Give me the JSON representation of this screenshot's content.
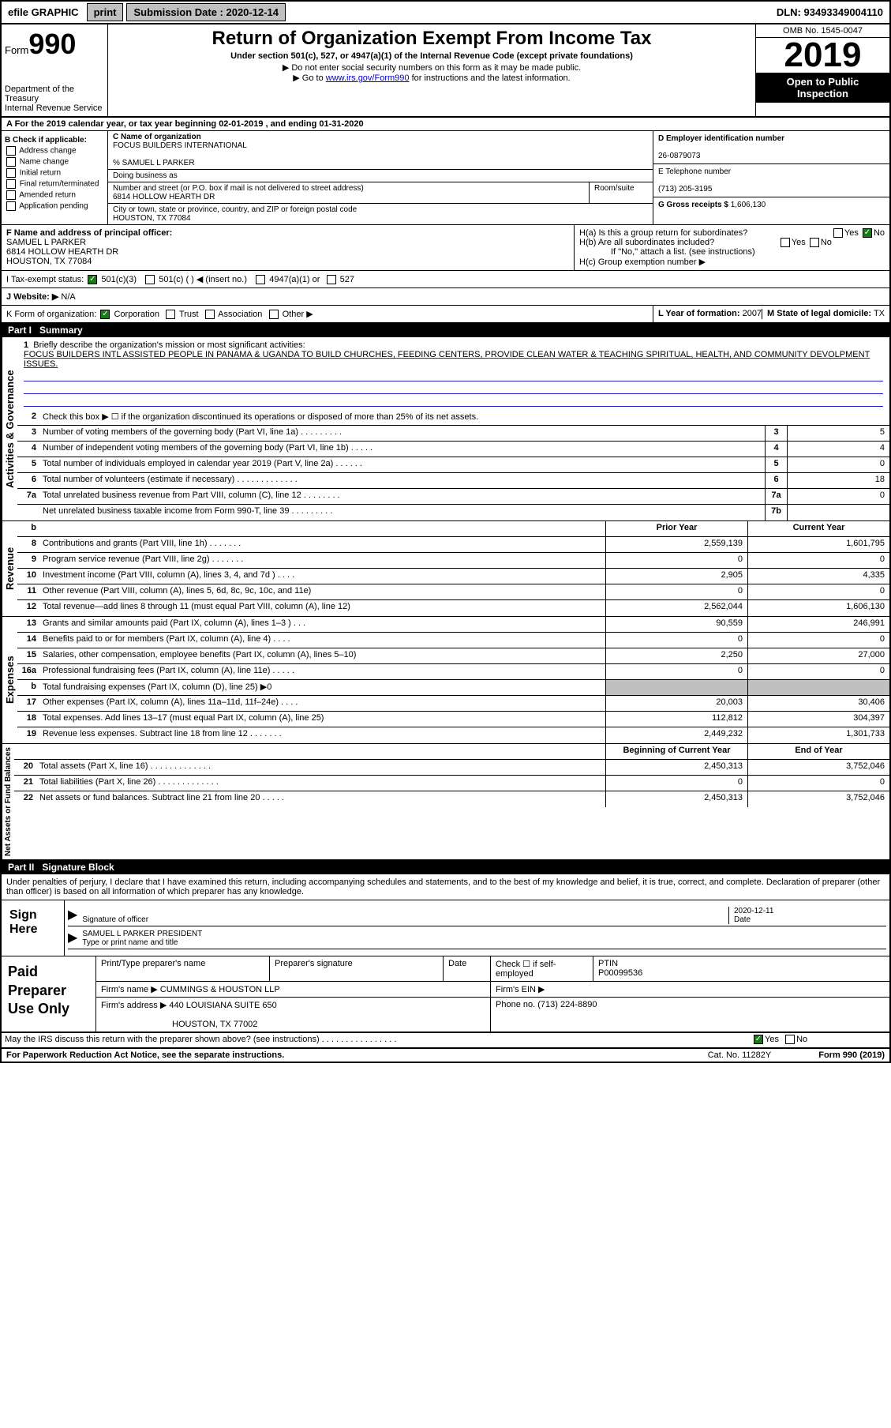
{
  "topbar": {
    "efile": "efile GRAPHIC",
    "print": "print",
    "sub_label": "Submission Date : 2020-12-14",
    "dln": "DLN: 93493349004110"
  },
  "header": {
    "form_word": "Form",
    "form_num": "990",
    "dept": "Department of the Treasury",
    "irs": "Internal Revenue Service",
    "title": "Return of Organization Exempt From Income Tax",
    "sub1": "Under section 501(c), 527, or 4947(a)(1) of the Internal Revenue Code (except private foundations)",
    "sub2": "▶ Do not enter social security numbers on this form as it may be made public.",
    "sub3_pre": "▶ Go to ",
    "sub3_link": "www.irs.gov/Form990",
    "sub3_post": " for instructions and the latest information.",
    "omb": "OMB No. 1545-0047",
    "year": "2019",
    "public1": "Open to Public",
    "public2": "Inspection"
  },
  "rowA": "A For the 2019 calendar year, or tax year beginning 02-01-2019  , and ending 01-31-2020",
  "colB": {
    "title": "B Check if applicable:",
    "items": [
      "Address change",
      "Name change",
      "Initial return",
      "Final return/terminated",
      "Amended return",
      "Application pending"
    ]
  },
  "colC": {
    "name_label": "C Name of organization",
    "name": "FOCUS BUILDERS INTERNATIONAL",
    "care_of": "% SAMUEL L PARKER",
    "dba": "Doing business as",
    "addr_label": "Number and street (or P.O. box if mail is not delivered to street address)",
    "room": "Room/suite",
    "addr": "6814 HOLLOW HEARTH DR",
    "city_label": "City or town, state or province, country, and ZIP or foreign postal code",
    "city": "HOUSTON, TX  77084"
  },
  "colD": {
    "ein_label": "D Employer identification number",
    "ein": "26-0879073",
    "tel_label": "E Telephone number",
    "tel": "(713) 205-3195",
    "gross_label": "G Gross receipts $",
    "gross": "1,606,130"
  },
  "rowF": {
    "label": "F Name and address of principal officer:",
    "name": "SAMUEL L PARKER",
    "addr1": "6814 HOLLOW HEARTH DR",
    "addr2": "HOUSTON, TX  77084"
  },
  "rowH": {
    "ha": "H(a)  Is this a group return for subordinates?",
    "hb": "H(b)  Are all subordinates included?",
    "hb_note": "If \"No,\" attach a list. (see instructions)",
    "hc": "H(c)  Group exemption number ▶"
  },
  "rowI": {
    "label": "I   Tax-exempt status:",
    "opts": [
      "501(c)(3)",
      "501(c) (  ) ◀ (insert no.)",
      "4947(a)(1) or",
      "527"
    ]
  },
  "rowJ": {
    "label": "J   Website: ▶",
    "val": "N/A"
  },
  "rowK": {
    "label": "K Form of organization:",
    "opts": [
      "Corporation",
      "Trust",
      "Association",
      "Other ▶"
    ]
  },
  "rowL": {
    "label": "L Year of formation:",
    "val": "2007"
  },
  "rowM": {
    "label": "M State of legal domicile:",
    "val": "TX"
  },
  "part1": {
    "num": "Part I",
    "title": "Summary"
  },
  "mission": {
    "num": "1",
    "label": "Briefly describe the organization's mission or most significant activities:",
    "text": "FOCUS BUILDERS INTL ASSISTED PEOPLE IN PANAMA & UGANDA TO BUILD CHURCHES, FEEDING CENTERS, PROVIDE CLEAN WATER & TEACHING SPIRITUAL, HEALTH, AND COMMUNITY DEVOLPMENT ISSUES."
  },
  "line2": "Check this box ▶ ☐ if the organization discontinued its operations or disposed of more than 25% of its net assets.",
  "gov_lines": [
    {
      "n": "3",
      "d": "Number of voting members of the governing body (Part VI, line 1a)  .  .  .  .  .  .  .  .  .",
      "box": "3",
      "v": "5"
    },
    {
      "n": "4",
      "d": "Number of independent voting members of the governing body (Part VI, line 1b)  .  .  .  .  .",
      "box": "4",
      "v": "4"
    },
    {
      "n": "5",
      "d": "Total number of individuals employed in calendar year 2019 (Part V, line 2a)  .  .  .  .  .  .",
      "box": "5",
      "v": "0"
    },
    {
      "n": "6",
      "d": "Total number of volunteers (estimate if necessary)  .  .  .  .  .  .  .  .  .  .  .  .  .",
      "box": "6",
      "v": "18"
    },
    {
      "n": "7a",
      "d": "Total unrelated business revenue from Part VIII, column (C), line 12  .  .  .  .  .  .  .  .",
      "box": "7a",
      "v": "0"
    },
    {
      "n": "",
      "d": "Net unrelated business taxable income from Form 990-T, line 39  .  .  .  .  .  .  .  .  .",
      "box": "7b",
      "v": ""
    }
  ],
  "col_headers": {
    "prior": "Prior Year",
    "current": "Current Year"
  },
  "rev_lines": [
    {
      "n": "8",
      "d": "Contributions and grants (Part VIII, line 1h)  .  .  .  .  .  .  .",
      "p": "2,559,139",
      "c": "1,601,795"
    },
    {
      "n": "9",
      "d": "Program service revenue (Part VIII, line 2g)  .  .  .  .  .  .  .",
      "p": "0",
      "c": "0"
    },
    {
      "n": "10",
      "d": "Investment income (Part VIII, column (A), lines 3, 4, and 7d )  .  .  .  .",
      "p": "2,905",
      "c": "4,335"
    },
    {
      "n": "11",
      "d": "Other revenue (Part VIII, column (A), lines 5, 6d, 8c, 9c, 10c, and 11e)",
      "p": "0",
      "c": "0"
    },
    {
      "n": "12",
      "d": "Total revenue—add lines 8 through 11 (must equal Part VIII, column (A), line 12)",
      "p": "2,562,044",
      "c": "1,606,130"
    }
  ],
  "exp_lines": [
    {
      "n": "13",
      "d": "Grants and similar amounts paid (Part IX, column (A), lines 1–3 )  .  .  .",
      "p": "90,559",
      "c": "246,991"
    },
    {
      "n": "14",
      "d": "Benefits paid to or for members (Part IX, column (A), line 4)  .  .  .  .",
      "p": "0",
      "c": "0"
    },
    {
      "n": "15",
      "d": "Salaries, other compensation, employee benefits (Part IX, column (A), lines 5–10)",
      "p": "2,250",
      "c": "27,000"
    },
    {
      "n": "16a",
      "d": "Professional fundraising fees (Part IX, column (A), line 11e)  .  .  .  .  .",
      "p": "0",
      "c": "0"
    },
    {
      "n": "b",
      "d": "Total fundraising expenses (Part IX, column (D), line 25) ▶0",
      "p": "",
      "c": "",
      "grey": true
    },
    {
      "n": "17",
      "d": "Other expenses (Part IX, column (A), lines 11a–11d, 11f–24e)  .  .  .  .",
      "p": "20,003",
      "c": "30,406"
    },
    {
      "n": "18",
      "d": "Total expenses. Add lines 13–17 (must equal Part IX, column (A), line 25)",
      "p": "112,812",
      "c": "304,397"
    },
    {
      "n": "19",
      "d": "Revenue less expenses. Subtract line 18 from line 12  .  .  .  .  .  .  .",
      "p": "2,449,232",
      "c": "1,301,733"
    }
  ],
  "net_headers": {
    "beg": "Beginning of Current Year",
    "end": "End of Year"
  },
  "net_lines": [
    {
      "n": "20",
      "d": "Total assets (Part X, line 16)  .  .  .  .  .  .  .  .  .  .  .  .  .",
      "p": "2,450,313",
      "c": "3,752,046"
    },
    {
      "n": "21",
      "d": "Total liabilities (Part X, line 26)  .  .  .  .  .  .  .  .  .  .  .  .  .",
      "p": "0",
      "c": "0"
    },
    {
      "n": "22",
      "d": "Net assets or fund balances. Subtract line 21 from line 20  .  .  .  .  .",
      "p": "2,450,313",
      "c": "3,752,046"
    }
  ],
  "part2": {
    "num": "Part II",
    "title": "Signature Block"
  },
  "penalty": "Under penalties of perjury, I declare that I have examined this return, including accompanying schedules and statements, and to the best of my knowledge and belief, it is true, correct, and complete. Declaration of preparer (other than officer) is based on all information of which preparer has any knowledge.",
  "sign": {
    "here": "Sign Here",
    "sig_officer": "Signature of officer",
    "date": "2020-12-11",
    "date_label": "Date",
    "name": "SAMUEL L PARKER  PRESIDENT",
    "type_label": "Type or print name and title"
  },
  "prep": {
    "title": "Paid Preparer Use Only",
    "h1": "Print/Type preparer's name",
    "h2": "Preparer's signature",
    "h3": "Date",
    "check": "Check ☐ if self-employed",
    "ptin_label": "PTIN",
    "ptin": "P00099536",
    "firm_label": "Firm's name  ▶",
    "firm": "CUMMINGS & HOUSTON LLP",
    "ein_label": "Firm's EIN ▶",
    "addr_label": "Firm's address ▶",
    "addr1": "440 LOUISIANA SUITE 650",
    "addr2": "HOUSTON, TX  77002",
    "phone_label": "Phone no.",
    "phone": "(713) 224-8890"
  },
  "discuss": "May the IRS discuss this return with the preparer shown above? (see instructions)  .  .  .  .  .  .  .  .  .  .  .  .  .  .  .  .",
  "footer": {
    "left": "For Paperwork Reduction Act Notice, see the separate instructions.",
    "mid": "Cat. No. 11282Y",
    "right": "Form 990 (2019)"
  },
  "side_labels": {
    "gov": "Activities & Governance",
    "rev": "Revenue",
    "exp": "Expenses",
    "net": "Net Assets or Fund Balances"
  },
  "yes": "Yes",
  "no": "No"
}
